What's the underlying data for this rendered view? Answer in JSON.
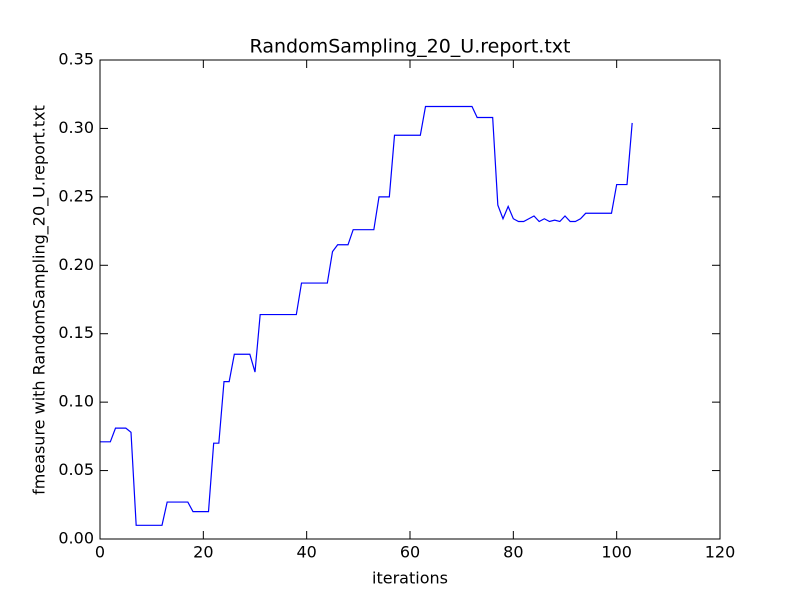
{
  "chart_data": {
    "type": "line",
    "title": "RandomSampling_20_U.report.txt",
    "xlabel": "iterations",
    "ylabel": "fmeasure with RandomSampling_20_U.report.txt",
    "color": "#0000ff",
    "x": [
      0,
      1,
      2,
      3,
      4,
      5,
      6,
      7,
      8,
      9,
      10,
      11,
      12,
      13,
      14,
      15,
      16,
      17,
      18,
      19,
      20,
      21,
      22,
      23,
      24,
      25,
      26,
      27,
      28,
      29,
      30,
      31,
      32,
      33,
      34,
      35,
      36,
      37,
      38,
      39,
      40,
      41,
      42,
      43,
      44,
      45,
      46,
      47,
      48,
      49,
      50,
      51,
      52,
      53,
      54,
      55,
      56,
      57,
      58,
      59,
      60,
      61,
      62,
      63,
      64,
      65,
      66,
      67,
      68,
      69,
      70,
      71,
      72,
      73,
      74,
      75,
      76,
      77,
      78,
      79,
      80,
      81,
      82,
      83,
      84,
      85,
      86,
      87,
      88,
      89,
      90,
      91,
      92,
      93,
      94,
      95,
      96,
      97,
      98,
      99,
      100,
      101,
      102,
      103
    ],
    "values": [
      0.071,
      0.071,
      0.071,
      0.081,
      0.081,
      0.081,
      0.078,
      0.01,
      0.01,
      0.01,
      0.01,
      0.01,
      0.01,
      0.027,
      0.027,
      0.027,
      0.027,
      0.027,
      0.02,
      0.02,
      0.02,
      0.02,
      0.07,
      0.07,
      0.115,
      0.115,
      0.135,
      0.135,
      0.135,
      0.135,
      0.122,
      0.164,
      0.164,
      0.164,
      0.164,
      0.164,
      0.164,
      0.164,
      0.164,
      0.187,
      0.187,
      0.187,
      0.187,
      0.187,
      0.187,
      0.21,
      0.215,
      0.215,
      0.215,
      0.226,
      0.226,
      0.226,
      0.226,
      0.226,
      0.25,
      0.25,
      0.25,
      0.295,
      0.295,
      0.295,
      0.295,
      0.295,
      0.295,
      0.316,
      0.316,
      0.316,
      0.316,
      0.316,
      0.316,
      0.316,
      0.316,
      0.316,
      0.316,
      0.308,
      0.308,
      0.308,
      0.308,
      0.244,
      0.234,
      0.243,
      0.234,
      0.232,
      0.232,
      0.234,
      0.236,
      0.232,
      0.234,
      0.232,
      0.233,
      0.232,
      0.236,
      0.232,
      0.232,
      0.234,
      0.238,
      0.238,
      0.238,
      0.238,
      0.238,
      0.238,
      0.259,
      0.259,
      0.259,
      0.304
    ],
    "xlim": [
      0,
      120
    ],
    "xticks": [
      0,
      20,
      40,
      60,
      80,
      100,
      120
    ],
    "ylim": [
      0,
      0.35
    ],
    "yticks": [
      {
        "value": 0,
        "label": "0.00"
      },
      0.05,
      {
        "value": 0.1,
        "label": "0.10"
      },
      0.15,
      {
        "value": 0.2,
        "label": "0.20"
      },
      0.25,
      {
        "value": 0.3,
        "label": "0.30"
      },
      0.35
    ]
  }
}
